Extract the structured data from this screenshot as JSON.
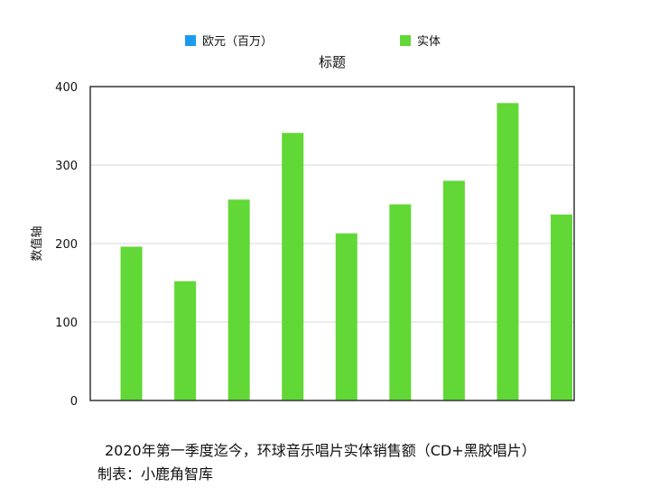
{
  "chart_data": {
    "type": "bar",
    "title": "标题",
    "ylabel": "数值轴",
    "xlabel": "",
    "ylim": [
      0,
      400
    ],
    "yticks": [
      0,
      100,
      200,
      300,
      400
    ],
    "grid": true,
    "legend_placement": "top",
    "categories": [
      "",
      "",
      "",
      "",
      "",
      "",
      "",
      "",
      ""
    ],
    "series": [
      {
        "name": "欧元（百万）",
        "color": "#1a9bf0",
        "values": [
          null,
          null,
          null,
          null,
          null,
          null,
          null,
          null,
          null
        ]
      },
      {
        "name": "实体",
        "color": "#61d836",
        "values": [
          196,
          152,
          256,
          341,
          213,
          250,
          280,
          379,
          237
        ]
      }
    ]
  },
  "caption": {
    "line1": "2020年第一季度迄今，环球音乐唱片实体销售额（CD+黑胶唱片）",
    "line2": "制表：小鹿角智库"
  }
}
